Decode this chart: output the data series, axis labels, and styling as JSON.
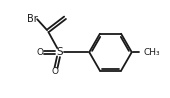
{
  "bg_color": "#ffffff",
  "line_color": "#1a1a1a",
  "line_width": 1.3,
  "br_label": "Br",
  "s_label": "S",
  "o_label": "O",
  "font_size_atom": 7.5,
  "font_size_br": 7.0,
  "font_size_ch3": 6.5
}
